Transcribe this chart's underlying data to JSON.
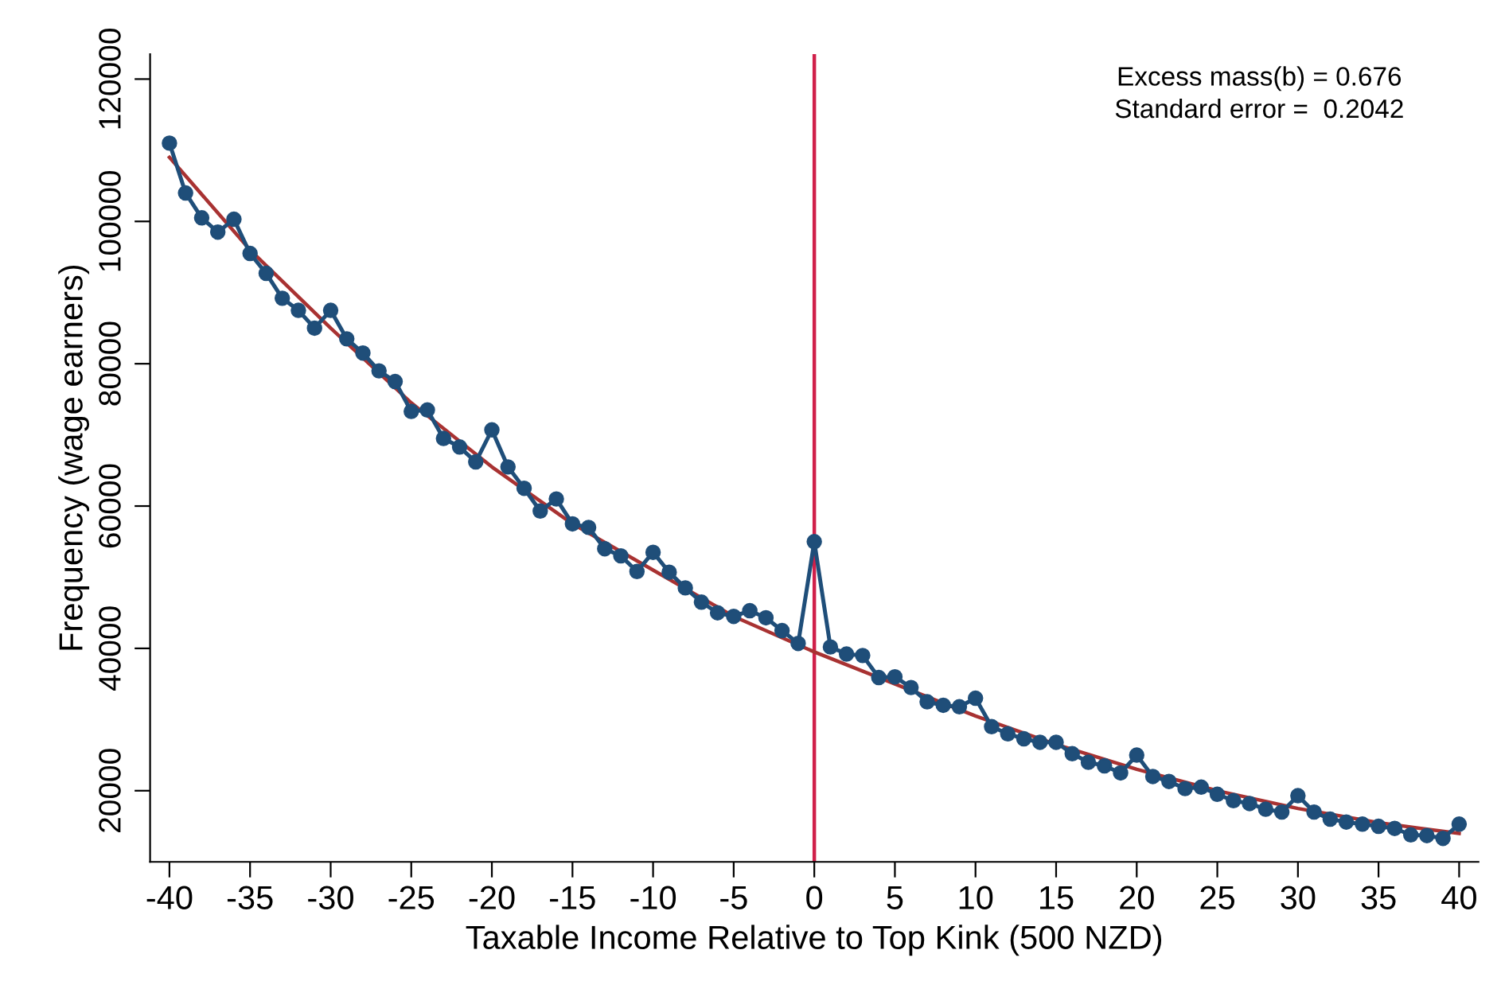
{
  "chart_data": {
    "type": "line",
    "xlabel": "Taxable Income Relative to Top Kink (500 NZD)",
    "ylabel": "Frequency (wage earners)",
    "series": [
      {
        "marker": "circle",
        "color": "#1f4e79",
        "x": [
          -40,
          -39,
          -38,
          -37,
          -36,
          -35,
          -34,
          -33,
          -32,
          -31,
          -30,
          -29,
          -28,
          -27,
          -26,
          -25,
          -24,
          -23,
          -22,
          -21,
          -20,
          -19,
          -18,
          -17,
          -16,
          -15,
          -14,
          -13,
          -12,
          -11,
          -10,
          -9,
          -8,
          -7,
          -6,
          -5,
          -4,
          -3,
          -2,
          -1,
          0,
          1,
          2,
          3,
          4,
          5,
          6,
          7,
          8,
          9,
          10,
          11,
          12,
          13,
          14,
          15,
          16,
          17,
          18,
          19,
          20,
          21,
          22,
          23,
          24,
          25,
          26,
          27,
          28,
          29,
          30,
          31,
          32,
          33,
          34,
          35,
          36,
          37,
          38,
          39,
          40
        ],
        "values": [
          111000,
          104000,
          100500,
          98500,
          100300,
          95500,
          92700,
          89200,
          87500,
          85000,
          87500,
          83500,
          81500,
          79000,
          77500,
          73300,
          73500,
          69500,
          68300,
          66200,
          70700,
          65500,
          62500,
          59300,
          61000,
          57500,
          57000,
          54000,
          53000,
          50800,
          53500,
          50700,
          48500,
          46500,
          45000,
          44500,
          45300,
          44300,
          42500,
          40700,
          55000,
          40200,
          39200,
          39000,
          35900,
          36000,
          34500,
          32500,
          32000,
          31800,
          33000,
          29000,
          28000,
          27300,
          26800,
          26800,
          25200,
          24000,
          23500,
          22500,
          25000,
          22000,
          21300,
          20300,
          20500,
          19500,
          18600,
          18200,
          17400,
          17000,
          19300,
          17000,
          16000,
          15600,
          15300,
          15000,
          14700,
          13800,
          13700,
          13300,
          15300
        ]
      },
      {
        "marker": "none",
        "color": "#a83232",
        "x": [
          -40,
          -35,
          -30,
          -25,
          -20,
          -15,
          -10,
          -5,
          0,
          5,
          10,
          15,
          20,
          25,
          30,
          35,
          40
        ],
        "values": [
          109000,
          96000,
          85000,
          74500,
          65500,
          57500,
          51000,
          44500,
          39500,
          35000,
          30500,
          26500,
          23000,
          20000,
          17500,
          15500,
          14000
        ]
      }
    ],
    "xlim": [
      -41.2,
      41.2
    ],
    "xticks": [
      -40,
      -35,
      -30,
      -25,
      -20,
      -15,
      -10,
      -5,
      0,
      5,
      10,
      15,
      20,
      25,
      30,
      35,
      40
    ],
    "ylim": [
      10000,
      123500
    ],
    "yticks": [
      20000,
      40000,
      60000,
      80000,
      100000,
      120000
    ],
    "ref_lines": [
      {
        "axis": "x",
        "value": 0,
        "color": "#d0204a"
      }
    ],
    "annotations": [
      "Excess mass(b) = 0.676",
      "Standard error =  0.2042"
    ],
    "grid": false,
    "legend": false
  }
}
